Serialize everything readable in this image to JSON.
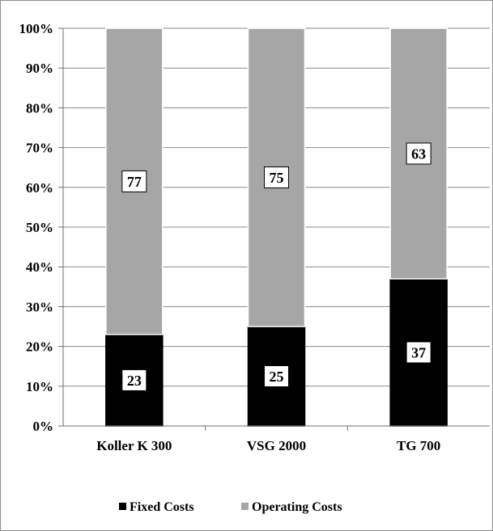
{
  "chart_data": {
    "type": "bar",
    "stacked": true,
    "percent": true,
    "categories": [
      "Koller K 300",
      "VSG 2000",
      "TG 700"
    ],
    "series": [
      {
        "name": "Fixed Costs",
        "values": [
          23,
          25,
          37
        ],
        "color": "#000000"
      },
      {
        "name": "Operating Costs",
        "values": [
          77,
          75,
          63
        ],
        "color": "#a6a6a6"
      }
    ],
    "yticks": [
      "0%",
      "10%",
      "20%",
      "30%",
      "40%",
      "50%",
      "60%",
      "70%",
      "80%",
      "90%",
      "100%"
    ],
    "ylim": [
      0,
      100
    ],
    "grid": true,
    "legend": "bottom",
    "data_labels": true
  }
}
